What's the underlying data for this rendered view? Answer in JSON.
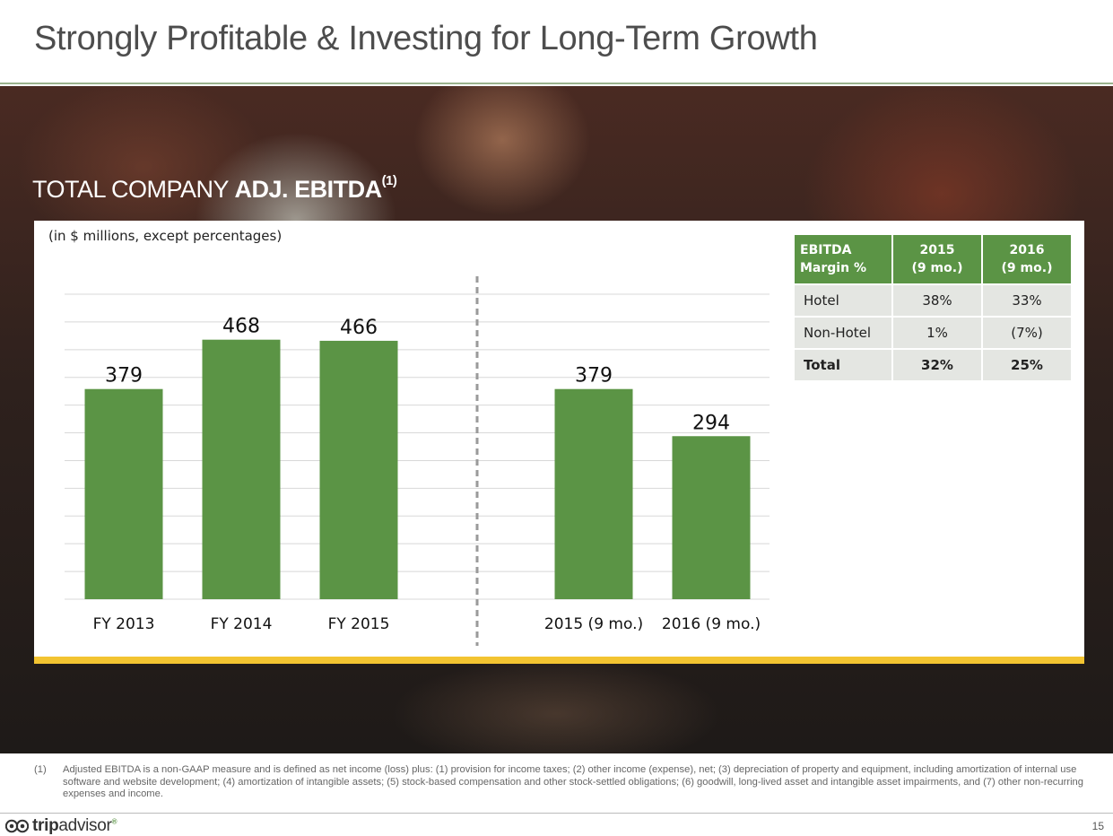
{
  "page": {
    "title": "Strongly Profitable & Investing for Long-Term Growth",
    "page_number": "15"
  },
  "section": {
    "heading_regular": "TOTAL COMPANY ",
    "heading_bold": "ADJ. EBITDA",
    "heading_sup": "(1)"
  },
  "chart_data": {
    "type": "bar",
    "units_note": "(in $ millions, except percentages)",
    "categories": [
      "FY 2013",
      "FY 2014",
      "FY 2015",
      "2015 (9 mo.)",
      "2016 (9 mo.)"
    ],
    "values": [
      379,
      468,
      466,
      379,
      294
    ],
    "data_labels": [
      "379",
      "468",
      "466",
      "379",
      "294"
    ],
    "ylim": [
      0,
      550
    ],
    "grid": true,
    "bar_color": "#5b9445",
    "separator": "dashed vertical line between FY 2015 and 2015 (9 mo.)"
  },
  "margin_table": {
    "headers": [
      "EBITDA Margin %",
      "2015 (9 mo.)",
      "2016 (9 mo.)"
    ],
    "rows": [
      {
        "label": "Hotel",
        "v2015": "38%",
        "v2016": "33%"
      },
      {
        "label": "Non-Hotel",
        "v2015": "1%",
        "v2016": "(7%)"
      },
      {
        "label": "Total",
        "v2015": "32%",
        "v2016": "25%"
      }
    ]
  },
  "footnote": {
    "number": "(1)",
    "text": "Adjusted EBITDA is a non-GAAP measure and is defined as net income (loss) plus: (1) provision for income taxes; (2) other income (expense), net; (3) depreciation of property and equipment, including amortization of internal use software and website development; (4) amortization of intangible assets; (5) stock-based compensation and other stock-settled obligations; (6) goodwill, long-lived asset and intangible asset impairments, and (7) other non-recurring expenses and income."
  },
  "footer": {
    "logo_bold": "trip",
    "logo_light": "advisor",
    "logo_mark": "®"
  },
  "colors": {
    "accent_green": "#5b9445",
    "accent_yellow": "#f3c431"
  }
}
